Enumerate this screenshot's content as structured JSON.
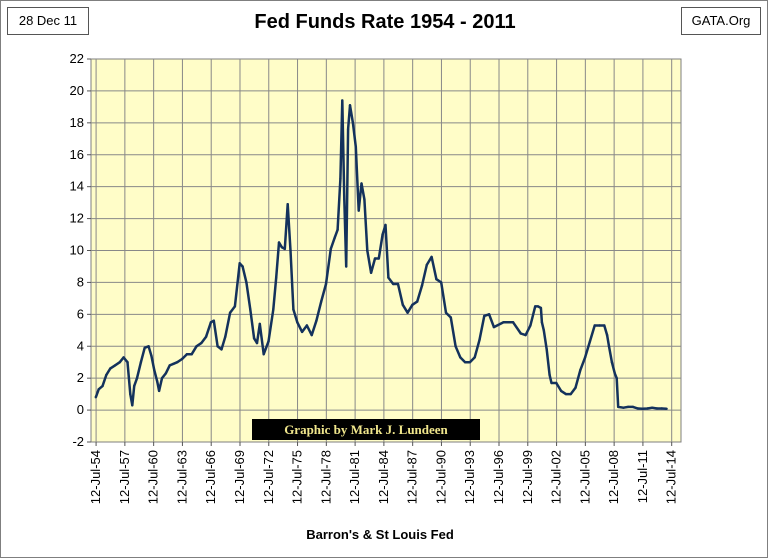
{
  "header": {
    "date": "28 Dec 11",
    "source": "GATA.Org"
  },
  "chart_data": {
    "type": "line",
    "title": "Fed Funds Rate 1954 - 2011",
    "xlabel": "Barron's & St Louis Fed",
    "ylabel": "",
    "credit": "Graphic by Mark J. Lundeen",
    "ylim": [
      -2,
      22
    ],
    "yticks": [
      -2,
      0,
      2,
      4,
      6,
      8,
      10,
      12,
      14,
      16,
      18,
      20,
      22
    ],
    "xlim": [
      1954,
      2015.5
    ],
    "xtick_years": [
      1954.53,
      1957.53,
      1960.53,
      1963.53,
      1966.53,
      1969.53,
      1972.53,
      1975.53,
      1978.53,
      1981.53,
      1984.53,
      1987.53,
      1990.53,
      1993.53,
      1996.53,
      1999.53,
      2002.53,
      2005.53,
      2008.53,
      2011.53,
      2014.53
    ],
    "xtick_labels": [
      "12-Jul-54",
      "12-Jul-57",
      "12-Jul-60",
      "12-Jul-63",
      "12-Jul-66",
      "12-Jul-69",
      "12-Jul-72",
      "12-Jul-75",
      "12-Jul-78",
      "12-Jul-81",
      "12-Jul-84",
      "12-Jul-87",
      "12-Jul-90",
      "12-Jul-93",
      "12-Jul-96",
      "12-Jul-99",
      "12-Jul-02",
      "12-Jul-05",
      "12-Jul-08",
      "12-Jul-11",
      "12-Jul-14"
    ],
    "grid": true,
    "series": [
      {
        "name": "Fed Funds Rate",
        "color": "#14325c",
        "x": [
          1954.5,
          1954.8,
          1955.2,
          1955.6,
          1956.0,
          1956.5,
          1957.0,
          1957.4,
          1957.8,
          1958.1,
          1958.3,
          1958.5,
          1958.8,
          1959.2,
          1959.6,
          1960.0,
          1960.3,
          1960.6,
          1960.9,
          1961.1,
          1961.4,
          1961.8,
          1962.2,
          1962.6,
          1963.0,
          1963.5,
          1964.0,
          1964.5,
          1965.0,
          1965.5,
          1966.0,
          1966.5,
          1966.8,
          1967.2,
          1967.6,
          1968.0,
          1968.5,
          1969.0,
          1969.5,
          1969.8,
          1970.2,
          1970.6,
          1971.0,
          1971.3,
          1971.6,
          1972.0,
          1972.5,
          1973.0,
          1973.3,
          1973.6,
          1973.9,
          1974.2,
          1974.5,
          1974.8,
          1975.1,
          1975.5,
          1976.0,
          1976.5,
          1977.0,
          1977.5,
          1978.0,
          1978.5,
          1979.0,
          1979.4,
          1979.7,
          1980.0,
          1980.2,
          1980.4,
          1980.6,
          1980.8,
          1981.0,
          1981.3,
          1981.6,
          1981.9,
          1982.2,
          1982.5,
          1982.8,
          1983.2,
          1983.6,
          1984.0,
          1984.4,
          1984.7,
          1985.0,
          1985.5,
          1986.0,
          1986.5,
          1987.0,
          1987.5,
          1988.0,
          1988.5,
          1989.0,
          1989.5,
          1990.0,
          1990.5,
          1991.0,
          1991.5,
          1992.0,
          1992.5,
          1993.0,
          1993.5,
          1994.0,
          1994.5,
          1995.0,
          1995.5,
          1996.0,
          1997.0,
          1998.0,
          1998.8,
          1999.3,
          1999.8,
          2000.3,
          2000.6,
          2000.9,
          2001.0,
          2001.2,
          2001.5,
          2001.8,
          2002.0,
          2002.5,
          2003.0,
          2003.5,
          2004.0,
          2004.5,
          2005.0,
          2005.5,
          2006.0,
          2006.5,
          2007.0,
          2007.5,
          2007.8,
          2008.0,
          2008.3,
          2008.6,
          2008.8,
          2008.95,
          2009.5,
          2010.0,
          2010.5,
          2011.0,
          2011.5,
          2012.0,
          2012.5,
          2013.0,
          2013.5,
          2014.0
        ],
        "y": [
          0.8,
          1.3,
          1.5,
          2.2,
          2.6,
          2.8,
          3.0,
          3.3,
          3.0,
          1.0,
          0.3,
          1.5,
          2.0,
          3.0,
          3.9,
          4.0,
          3.4,
          2.5,
          1.8,
          1.2,
          2.0,
          2.3,
          2.8,
          2.9,
          3.0,
          3.2,
          3.5,
          3.5,
          4.0,
          4.2,
          4.6,
          5.5,
          5.6,
          4.0,
          3.8,
          4.6,
          6.1,
          6.5,
          9.2,
          9.0,
          8.0,
          6.3,
          4.5,
          4.2,
          5.4,
          3.5,
          4.3,
          6.3,
          8.3,
          10.5,
          10.2,
          10.1,
          12.9,
          10.0,
          6.3,
          5.5,
          4.9,
          5.3,
          4.7,
          5.6,
          6.8,
          7.9,
          10.1,
          10.8,
          11.3,
          14.5,
          19.4,
          13.2,
          9.0,
          17.6,
          19.1,
          18.0,
          16.5,
          12.5,
          14.2,
          13.2,
          10.0,
          8.6,
          9.5,
          9.5,
          11.0,
          11.6,
          8.3,
          7.9,
          7.9,
          6.6,
          6.1,
          6.6,
          6.8,
          7.8,
          9.1,
          9.6,
          8.2,
          8.0,
          6.1,
          5.8,
          4.0,
          3.3,
          3.0,
          3.0,
          3.3,
          4.4,
          5.9,
          6.0,
          5.2,
          5.5,
          5.5,
          4.8,
          4.7,
          5.3,
          6.5,
          6.5,
          6.4,
          5.5,
          5.0,
          3.8,
          2.2,
          1.7,
          1.7,
          1.2,
          1.0,
          1.0,
          1.4,
          2.5,
          3.3,
          4.3,
          5.3,
          5.3,
          5.3,
          4.7,
          4.0,
          3.0,
          2.3,
          2.0,
          0.2,
          0.15,
          0.2,
          0.2,
          0.1,
          0.08,
          0.1,
          0.15,
          0.1,
          0.1,
          0.08
        ]
      }
    ]
  }
}
